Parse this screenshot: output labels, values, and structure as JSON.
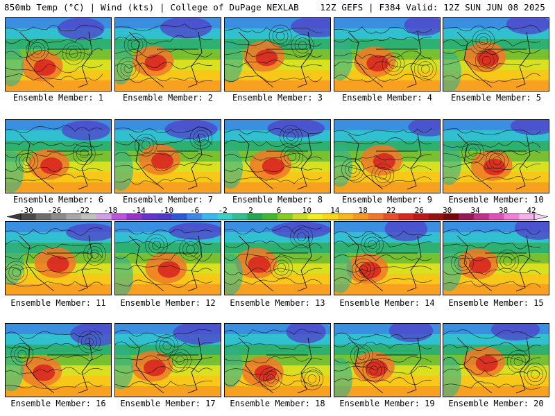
{
  "header": {
    "left": "850mb Temp (°C) | Wind (kts) | College of DuPage NEXLAB",
    "right": "12Z GEFS | F384 Valid: 12Z SUN JUN 08 2025"
  },
  "colorbar": {
    "labels": [
      "-30",
      "-26",
      "-22",
      "-18",
      "-14",
      "-10",
      "-6",
      "-2",
      "2",
      "6",
      "10",
      "14",
      "18",
      "22",
      "26",
      "30",
      "34",
      "38",
      "42"
    ],
    "colors": [
      "#4a4a4a",
      "#6e6e6e",
      "#8c8c8c",
      "#a8a8a8",
      "#c0c0c0",
      "#d2a0e6",
      "#bb55dd",
      "#9933cc",
      "#6633cc",
      "#4b3bc8",
      "#2e5ad8",
      "#3d88e8",
      "#38b8f0",
      "#38d0c8",
      "#2ec090",
      "#22a850",
      "#40b830",
      "#88cc20",
      "#c8dc20",
      "#f0f020",
      "#f8d818",
      "#f8b818",
      "#f89820",
      "#f07828",
      "#e85028",
      "#d82820",
      "#c01818",
      "#981010",
      "#780808",
      "#981858",
      "#c03088",
      "#e050b8",
      "#f080d8",
      "#f8b0e8"
    ]
  },
  "panels": [
    {
      "label": "Ensemble Member: 1"
    },
    {
      "label": "Ensemble Member: 2"
    },
    {
      "label": "Ensemble Member: 3"
    },
    {
      "label": "Ensemble Member: 4"
    },
    {
      "label": "Ensemble Member: 5"
    },
    {
      "label": "Ensemble Member: 6"
    },
    {
      "label": "Ensemble Member: 7"
    },
    {
      "label": "Ensemble Member: 8"
    },
    {
      "label": "Ensemble Member: 9"
    },
    {
      "label": "Ensemble Member: 10"
    },
    {
      "label": "Ensemble Member: 11"
    },
    {
      "label": "Ensemble Member: 12"
    },
    {
      "label": "Ensemble Member: 13"
    },
    {
      "label": "Ensemble Member: 14"
    },
    {
      "label": "Ensemble Member: 15"
    },
    {
      "label": "Ensemble Member: 16"
    },
    {
      "label": "Ensemble Member: 17"
    },
    {
      "label": "Ensemble Member: 18"
    },
    {
      "label": "Ensemble Member: 19"
    },
    {
      "label": "Ensemble Member: 20"
    }
  ]
}
